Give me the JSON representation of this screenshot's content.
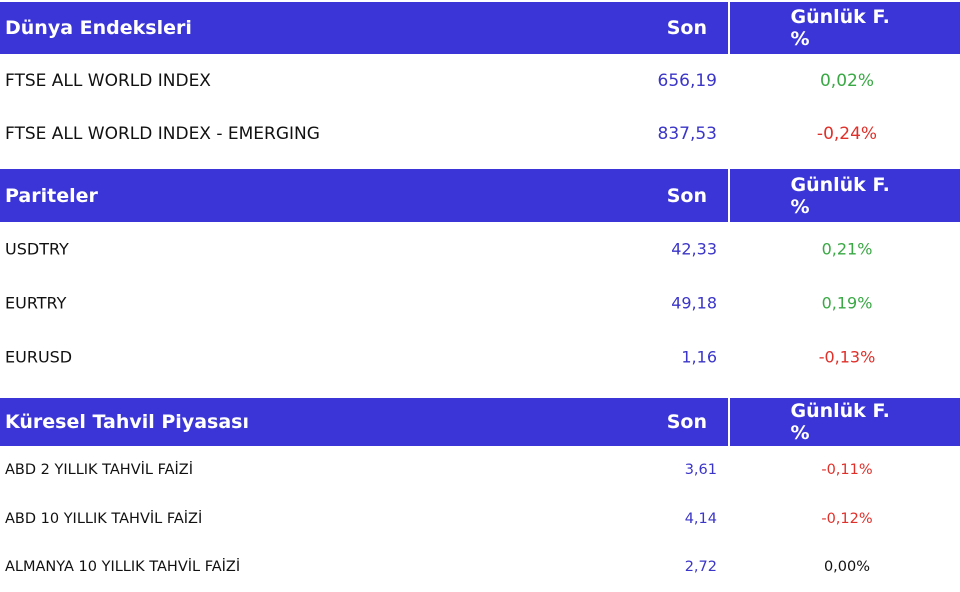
{
  "sections": [
    {
      "title": "Dünya Endeksleri",
      "columns": [
        "Son",
        "Günlük F. %"
      ],
      "rows": [
        [
          "FTSE ALL WORLD INDEX",
          "656,19",
          "0,02%"
        ],
        [
          "FTSE ALL WORLD INDEX - EMERGING",
          "837,53",
          "-0,24%"
        ]
      ]
    },
    {
      "title": "Pariteler",
      "columns": [
        "Son",
        "Günlük F. %"
      ],
      "rows": [
        [
          "USDTRY",
          "42,33",
          "0,21%"
        ],
        [
          "EURTRY",
          "49,18",
          "0,19%"
        ],
        [
          "EURUSD",
          "1,16",
          "-0,13%"
        ]
      ]
    },
    {
      "title": "Küresel Tahvil Piyasası",
      "columns": [
        "Son",
        "Günlük F. %"
      ],
      "rows": [
        [
          "ABD 2 YILLIK TAHVİL FAİZİ",
          "3,61",
          "-0,11%"
        ],
        [
          "ABD 10 YILLIK TAHVİL FAİZİ",
          "4,14",
          "-0,12%"
        ],
        [
          "ALMANYA 10 YILLIK TAHVİL FAİZİ",
          "2,72",
          "0,00%"
        ]
      ]
    }
  ]
}
